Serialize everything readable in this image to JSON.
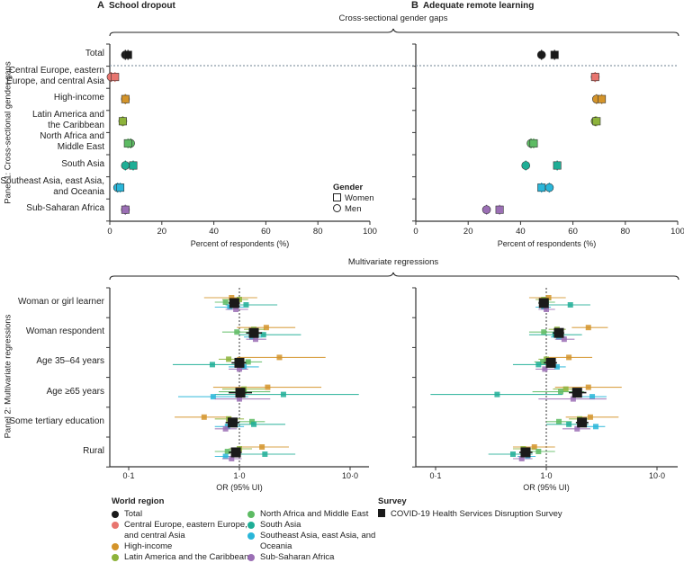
{
  "panel_a": {
    "letter": "A",
    "title": "School dropout"
  },
  "panel_b": {
    "letter": "B",
    "title": "Adequate remote learning"
  },
  "brackets": {
    "top": "Cross-sectional gender gaps",
    "bottom": "Multivariate regressions"
  },
  "side_labels": {
    "panel1": "Panel 1: Cross-sectional gender gaps",
    "panel2": "Panel 2: Multivariate regressions"
  },
  "gender_legend": {
    "title": "Gender",
    "women": "Women",
    "men": "Men"
  },
  "region_rows": [
    {
      "lines": [
        "Total"
      ]
    },
    {
      "lines": [
        "Central Europe, eastern",
        "Europe, and central Asia"
      ]
    },
    {
      "lines": [
        "High-income"
      ]
    },
    {
      "lines": [
        "Latin America and",
        "the Caribbean"
      ]
    },
    {
      "lines": [
        "North Africa and",
        "Middle East"
      ]
    },
    {
      "lines": [
        "South Asia"
      ]
    },
    {
      "lines": [
        "Southeast Asia, east Asia,",
        "and Oceania"
      ]
    },
    {
      "lines": [
        "Sub-Saharan Africa"
      ]
    }
  ],
  "regression_rows": [
    "Woman or girl learner",
    "Woman respondent",
    "Age 35–64 years",
    "Age ≥65 years",
    "Some tertiary education",
    "Rural"
  ],
  "legend": {
    "world_region_title": "World region",
    "regions": [
      {
        "name": "Total",
        "color": "#1a1a1a",
        "lines": [
          "Total"
        ]
      },
      {
        "name": "Central Europe, eastern Europe, and central Asia",
        "color": "#e8756f",
        "lines": [
          "Central Europe, eastern Europe,",
          "and central Asia"
        ]
      },
      {
        "name": "High-income",
        "color": "#d4942a",
        "lines": [
          "High-income"
        ]
      },
      {
        "name": "Latin America and the Caribbean",
        "color": "#8db33a",
        "lines": [
          "Latin America and the Caribbean"
        ]
      },
      {
        "name": "North Africa and Middle East",
        "color": "#5dbb63",
        "lines": [
          "North Africa and Middle East"
        ]
      },
      {
        "name": "South Asia",
        "color": "#1fae96",
        "lines": [
          "South Asia"
        ]
      },
      {
        "name": "Southeast Asia, east Asia, and Oceania",
        "color": "#29b6d9",
        "lines": [
          "Southeast Asia, east Asia, and",
          "Oceania"
        ]
      },
      {
        "name": "Sub-Saharan Africa",
        "color": "#9b6fb5",
        "lines": [
          "Sub-Saharan Africa"
        ]
      }
    ],
    "survey_title": "Survey",
    "survey_item": "COVID-19 Health Services Disruption Survey"
  },
  "chart_data": [
    {
      "type": "scatter",
      "panel": "A",
      "title": "School dropout",
      "xlabel": "Percent of respondents (%)",
      "xlim": [
        0,
        100
      ],
      "xticks": [
        "0",
        "20",
        "40",
        "60",
        "80",
        "100"
      ],
      "categories": [
        "Total",
        "Central Europe, eastern Europe, and central Asia",
        "High-income",
        "Latin America and the Caribbean",
        "North Africa and Middle East",
        "South Asia",
        "Southeast Asia, east Asia, and Oceania",
        "Sub-Saharan Africa"
      ],
      "series": [
        {
          "name": "Women",
          "marker": "square",
          "values": [
            7,
            2,
            6,
            5,
            7,
            9,
            4,
            6
          ]
        },
        {
          "name": "Men",
          "marker": "circle",
          "values": [
            6,
            0.5,
            6,
            5,
            8,
            6,
            3,
            6
          ]
        }
      ]
    },
    {
      "type": "scatter",
      "panel": "B",
      "title": "Adequate remote learning",
      "xlabel": "Percent of respondents (%)",
      "xlim": [
        0,
        100
      ],
      "xticks": [
        "0",
        "20",
        "40",
        "60",
        "80",
        "100"
      ],
      "categories": [
        "Total",
        "Central Europe, eastern Europe, and central Asia",
        "High-income",
        "Latin America and the Caribbean",
        "North Africa and Middle East",
        "South Asia",
        "Southeast Asia, east Asia, and Oceania",
        "Sub-Saharan Africa"
      ],
      "series": [
        {
          "name": "Women",
          "marker": "square",
          "values": [
            53,
            68.5,
            71,
            69,
            45,
            54,
            48,
            32
          ]
        },
        {
          "name": "Men",
          "marker": "circle",
          "values": [
            48,
            68.5,
            69,
            68.5,
            44,
            42,
            51,
            27
          ]
        }
      ]
    },
    {
      "type": "forest",
      "panel": "A",
      "xlabel": "OR (95% UI)",
      "xscale": "log",
      "xlim": [
        0.07,
        14
      ],
      "xticks": [
        "0·1",
        "1·0",
        "10·0"
      ],
      "reference_line": 1,
      "categories": [
        "Woman or girl learner",
        "Woman respondent",
        "Age 35–64 years",
        "Age ≥65 years",
        "Some tertiary education",
        "Rural"
      ],
      "series": [
        {
          "name": "High-income",
          "color": "#d4942a",
          "values": [
            [
              0.85,
              0.48,
              1.45
            ],
            [
              1.75,
              0.95,
              3.2
            ],
            [
              2.3,
              0.95,
              6.0
            ],
            [
              1.8,
              0.58,
              5.5
            ],
            [
              0.48,
              0.26,
              0.85
            ],
            [
              1.6,
              1.0,
              2.8
            ]
          ]
        },
        {
          "name": "Latin America and the Caribbean",
          "color": "#8db33a",
          "values": [
            [
              1.0,
              0.7,
              1.2
            ],
            [
              1.35,
              1.1,
              1.7
            ],
            [
              0.8,
              0.65,
              1.0
            ],
            [
              1.1,
              0.7,
              1.7
            ],
            [
              0.8,
              0.6,
              1.1
            ],
            [
              1.0,
              0.8,
              1.3
            ]
          ]
        },
        {
          "name": "North Africa and Middle East",
          "color": "#5dbb63",
          "values": [
            [
              0.75,
              0.6,
              1.0
            ],
            [
              0.95,
              0.7,
              1.3
            ],
            [
              1.2,
              0.9,
              1.6
            ],
            [
              1.1,
              0.65,
              1.9
            ],
            [
              1.3,
              1.0,
              1.7
            ],
            [
              0.78,
              0.6,
              1.0
            ]
          ]
        },
        {
          "name": "South Asia",
          "color": "#1fae96",
          "values": [
            [
              1.15,
              0.75,
              2.2
            ],
            [
              1.65,
              1.0,
              3.6
            ],
            [
              0.57,
              0.25,
              1.0
            ],
            [
              2.5,
              0.6,
              12
            ],
            [
              1.35,
              0.75,
              2.6
            ],
            [
              1.7,
              0.9,
              3.2
            ]
          ]
        },
        {
          "name": "Southeast Asia, east Asia, and Oceania",
          "color": "#29b6d9",
          "values": [
            [
              0.82,
              0.6,
              1.1
            ],
            [
              1.3,
              1.1,
              1.6
            ],
            [
              1.1,
              0.8,
              1.5
            ],
            [
              0.58,
              0.28,
              1.2
            ],
            [
              0.78,
              0.6,
              1.1
            ],
            [
              0.75,
              0.6,
              0.95
            ]
          ]
        },
        {
          "name": "Sub-Saharan Africa",
          "color": "#9b6fb5",
          "values": [
            [
              0.93,
              0.75,
              1.2
            ],
            [
              1.4,
              1.15,
              1.75
            ],
            [
              1.0,
              0.8,
              1.2
            ],
            [
              1.0,
              0.6,
              1.9
            ],
            [
              0.75,
              0.6,
              0.95
            ],
            [
              0.85,
              0.7,
              1.05
            ]
          ]
        },
        {
          "name": "Total",
          "color": "#1a1a1a",
          "values": [
            [
              0.9,
              0.8,
              1.0
            ],
            [
              1.35,
              1.15,
              1.6
            ],
            [
              1.0,
              0.85,
              1.15
            ],
            [
              1.02,
              0.8,
              1.3
            ],
            [
              0.87,
              0.75,
              1.0
            ],
            [
              0.93,
              0.8,
              1.05
            ]
          ]
        }
      ]
    },
    {
      "type": "forest",
      "panel": "B",
      "xlabel": "OR (95% UI)",
      "xscale": "log",
      "xlim": [
        0.07,
        14
      ],
      "xticks": [
        "0·1",
        "1·0",
        "10·0"
      ],
      "reference_line": 1,
      "categories": [
        "Woman or girl learner",
        "Woman respondent",
        "Age 35–64 years",
        "Age ≥65 years",
        "Some tertiary education",
        "Rural"
      ],
      "series": [
        {
          "name": "High-income",
          "color": "#d4942a",
          "values": [
            [
              1.05,
              0.7,
              1.5
            ],
            [
              2.4,
              1.7,
              3.6
            ],
            [
              1.6,
              1.0,
              2.6
            ],
            [
              2.4,
              1.2,
              4.8
            ],
            [
              2.5,
              1.5,
              4.5
            ],
            [
              0.78,
              0.5,
              1.2
            ]
          ]
        },
        {
          "name": "Latin America and the Caribbean",
          "color": "#8db33a",
          "values": [
            [
              0.95,
              0.8,
              1.1
            ],
            [
              1.25,
              1.05,
              1.5
            ],
            [
              1.0,
              0.85,
              1.2
            ],
            [
              1.5,
              1.15,
              2.0
            ],
            [
              2.0,
              1.6,
              2.4
            ],
            [
              0.62,
              0.5,
              0.8
            ]
          ]
        },
        {
          "name": "North Africa and Middle East",
          "color": "#5dbb63",
          "values": [
            [
              1.0,
              0.85,
              1.2
            ],
            [
              0.95,
              0.7,
              1.2
            ],
            [
              0.93,
              0.78,
              1.1
            ],
            [
              1.35,
              0.75,
              2.2
            ],
            [
              1.3,
              1.0,
              1.7
            ],
            [
              0.85,
              0.6,
              1.2
            ]
          ]
        },
        {
          "name": "South Asia",
          "color": "#1fae96",
          "values": [
            [
              1.65,
              0.95,
              2.5
            ],
            [
              1.2,
              0.7,
              2.1
            ],
            [
              0.85,
              0.5,
              1.2
            ],
            [
              0.36,
              0.09,
              1.4
            ],
            [
              1.6,
              1.0,
              2.4
            ],
            [
              0.5,
              0.3,
              0.75
            ]
          ]
        },
        {
          "name": "Southeast Asia, east Asia, and Oceania",
          "color": "#29b6d9",
          "values": [
            [
              0.95,
              0.8,
              1.1
            ],
            [
              1.3,
              1.1,
              1.5
            ],
            [
              1.25,
              1.0,
              1.5
            ],
            [
              2.6,
              1.8,
              3.5
            ],
            [
              2.8,
              2.1,
              3.4
            ],
            [
              0.68,
              0.55,
              0.8
            ]
          ]
        },
        {
          "name": "Sub-Saharan Africa",
          "color": "#9b6fb5",
          "values": [
            [
              1.0,
              0.85,
              1.2
            ],
            [
              1.45,
              1.2,
              1.8
            ],
            [
              0.97,
              0.8,
              1.2
            ],
            [
              1.75,
              0.85,
              3.5
            ],
            [
              1.9,
              1.4,
              2.5
            ],
            [
              0.6,
              0.5,
              0.75
            ]
          ]
        },
        {
          "name": "Total",
          "color": "#1a1a1a",
          "values": [
            [
              0.95,
              0.85,
              1.05
            ],
            [
              1.3,
              1.15,
              1.45
            ],
            [
              1.1,
              0.95,
              1.25
            ],
            [
              1.9,
              1.6,
              2.3
            ],
            [
              2.1,
              1.85,
              2.4
            ],
            [
              0.65,
              0.57,
              0.75
            ]
          ]
        }
      ]
    }
  ]
}
